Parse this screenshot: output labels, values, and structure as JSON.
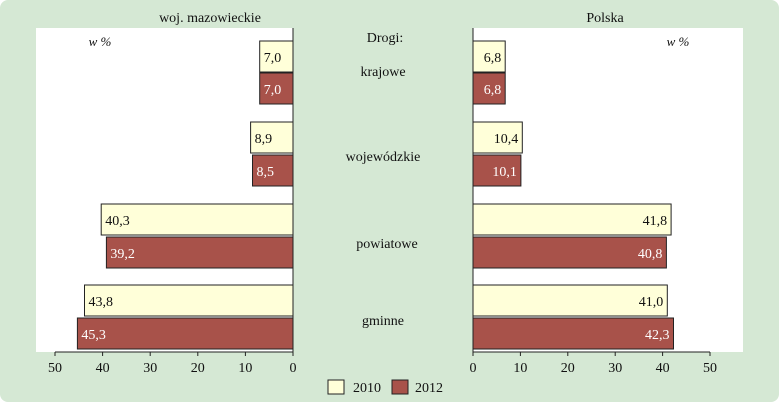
{
  "chart_data": {
    "type": "bar",
    "orientation": "horizontal-mirrored",
    "center_title": "Drogi:",
    "categories": [
      "krajowe",
      "wojewódzkie",
      "powiatowe",
      "gminne"
    ],
    "panels": [
      {
        "title": "woj. mazowieckie",
        "unit_label": "w %",
        "xlim": [
          0,
          50
        ],
        "ticks": [
          "50",
          "40",
          "30",
          "20",
          "10",
          "0"
        ],
        "tick_values": [
          50,
          40,
          30,
          20,
          10,
          0
        ],
        "series": [
          {
            "name": "2010",
            "values": [
              7.0,
              8.9,
              40.3,
              43.8
            ],
            "labels": [
              "7,0",
              "8,9",
              "40,3",
              "43,8"
            ]
          },
          {
            "name": "2012",
            "values": [
              7.0,
              8.5,
              39.2,
              45.3
            ],
            "labels": [
              "7,0",
              "8,5",
              "39,2",
              "45,3"
            ]
          }
        ]
      },
      {
        "title": "Polska",
        "unit_label": "w %",
        "xlim": [
          0,
          50
        ],
        "ticks": [
          "0",
          "10",
          "20",
          "30",
          "40",
          "50"
        ],
        "tick_values": [
          0,
          10,
          20,
          30,
          40,
          50
        ],
        "series": [
          {
            "name": "2010",
            "values": [
              6.8,
              10.4,
              41.8,
              41.0
            ],
            "labels": [
              "6,8",
              "10,4",
              "41,8",
              "41,0"
            ]
          },
          {
            "name": "2012",
            "values": [
              6.8,
              10.1,
              40.8,
              42.3
            ],
            "labels": [
              "6,8",
              "10,1",
              "40,8",
              "42,3"
            ]
          }
        ]
      }
    ],
    "legend": [
      "2010",
      "2012"
    ],
    "legend_position": "bottom-center",
    "grid": false,
    "colors": {
      "background": "#d5e8d4",
      "plot_background": "#ffffff",
      "bar_2010": "#ffffd9",
      "bar_2012": "#a8524a",
      "label_2010": "#111111",
      "label_2012": "#ffffff",
      "border": "#222222"
    }
  }
}
